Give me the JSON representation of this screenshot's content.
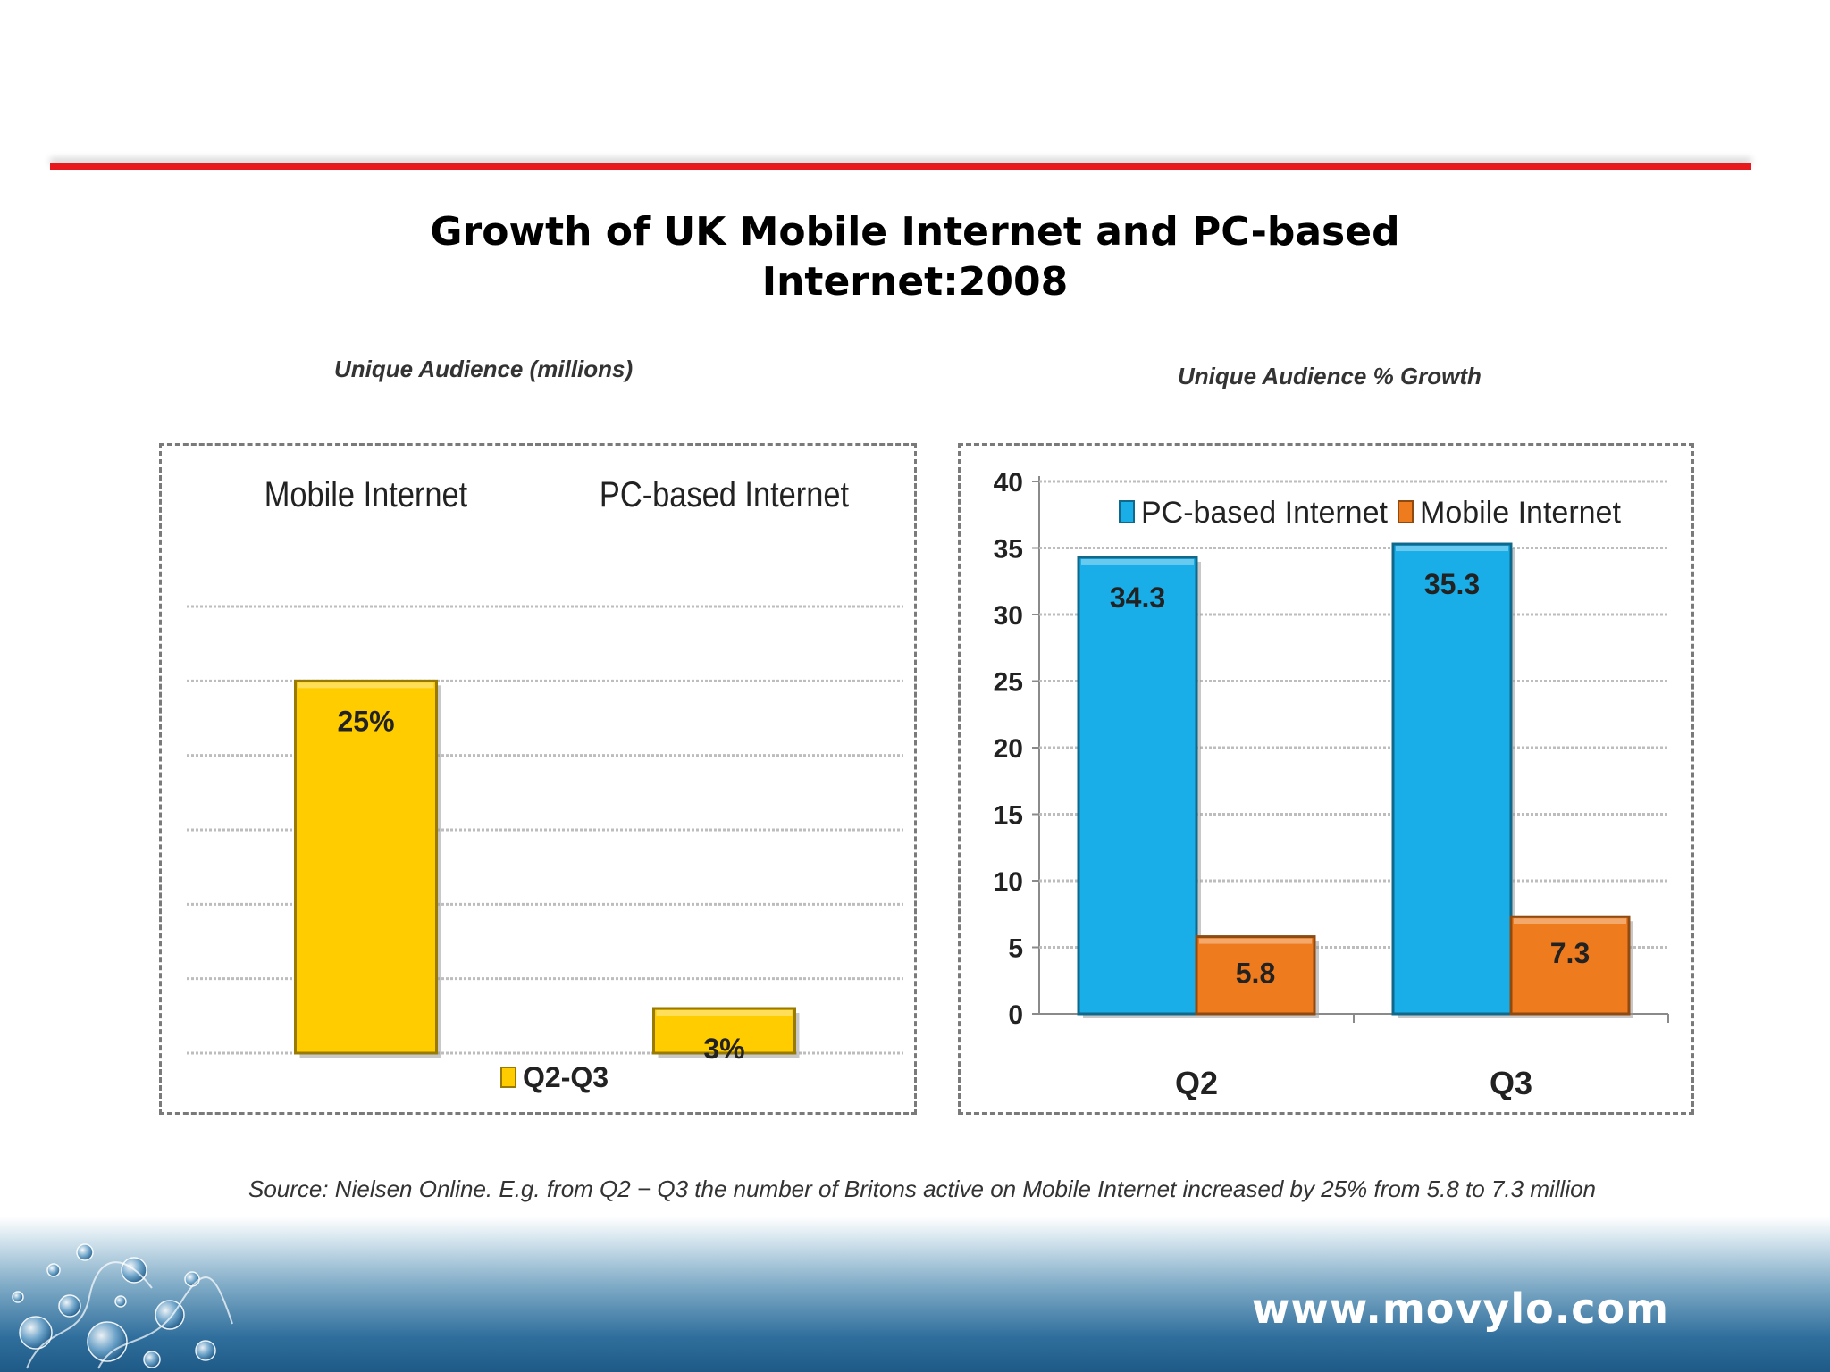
{
  "slide": {
    "title_line1": "Growth of UK Mobile Internet and PC-based",
    "title_line2": "Internet:2008",
    "source": "Source: Nielsen Online. E.g. from Q2 − Q3 the number of Britons active on Mobile Internet increased by 25% from 5.8 to 7.3 million",
    "footer_url": "www.movylo.com"
  },
  "colors": {
    "accent_red": "#e8191c",
    "bar_yellow": "#ffcc00",
    "bar_blue": "#1aaee8",
    "bar_orange": "#ee7b1e"
  },
  "chart_data": [
    {
      "type": "bar",
      "subtitle": "Unique Audience (millions)",
      "categories": [
        "Mobile Internet",
        "PC-based Internet"
      ],
      "series": [
        {
          "name": "Q2-Q3",
          "values": [
            25,
            3
          ],
          "labels": [
            "25%",
            "3%"
          ],
          "color": "#ffcc00"
        }
      ],
      "ylim": [
        0,
        30
      ],
      "grid": true,
      "legend": "bottom"
    },
    {
      "type": "bar",
      "subtitle": "Unique Audience % Growth",
      "categories": [
        "Q2",
        "Q3"
      ],
      "series": [
        {
          "name": "PC-based Internet",
          "values": [
            34.3,
            35.3
          ],
          "labels": [
            "34.3",
            "35.3"
          ],
          "color": "#1aaee8"
        },
        {
          "name": "Mobile Internet",
          "values": [
            5.8,
            7.3
          ],
          "labels": [
            "5.8",
            "7.3"
          ],
          "color": "#ee7b1e"
        }
      ],
      "yticks": [
        "0",
        "5",
        "10",
        "15",
        "20",
        "25",
        "30",
        "35",
        "40"
      ],
      "ylim": [
        0,
        40
      ],
      "grid": true,
      "legend": "top"
    }
  ]
}
